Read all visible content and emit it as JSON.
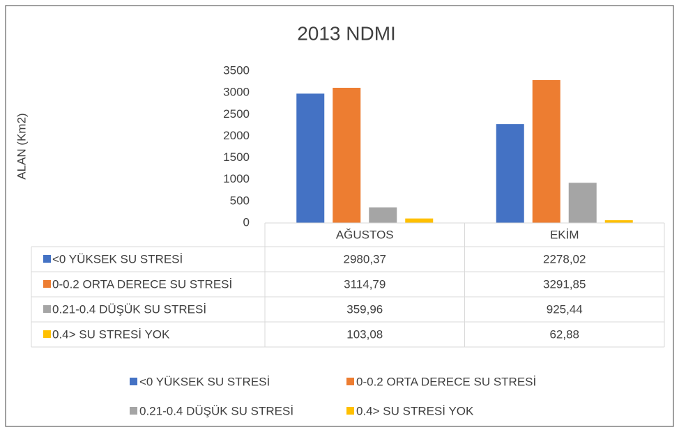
{
  "chart_data": {
    "type": "bar",
    "title": "2013 NDMI",
    "y_label": "ALAN (Km2)",
    "categories": [
      "AĞUSTOS",
      "EKİM"
    ],
    "series": [
      {
        "name": "<0 YÜKSEK SU STRESİ",
        "color": "#4472c4",
        "values": [
          2980.37,
          2278.02
        ],
        "value_labels": [
          "2980,37",
          "2278,02"
        ]
      },
      {
        "name": "0-0.2 ORTA DERECE SU STRESİ",
        "color": "#ed7d31",
        "values": [
          3114.79,
          3291.85
        ],
        "value_labels": [
          "3114,79",
          "3291,85"
        ]
      },
      {
        "name": "0.21-0.4 DÜŞÜK SU STRESİ",
        "color": "#a5a5a5",
        "values": [
          359.96,
          925.44
        ],
        "value_labels": [
          "359,96",
          "925,44"
        ]
      },
      {
        "name": "0.4> SU STRESİ YOK",
        "color": "#ffc000",
        "values": [
          103.08,
          62.88
        ],
        "value_labels": [
          "103,08",
          "62,88"
        ]
      }
    ],
    "ylim": [
      0,
      3500
    ],
    "yticks": [
      0,
      500,
      1000,
      1500,
      2000,
      2500,
      3000,
      3500
    ],
    "grid": false,
    "data_table": true,
    "legend": "bottom"
  }
}
